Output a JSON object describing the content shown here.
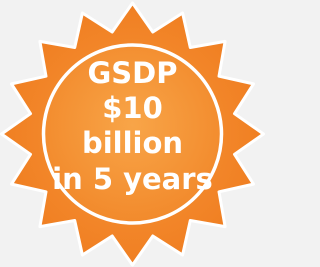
{
  "badge": {
    "lines": [
      "GSDP",
      "$10",
      "billion",
      "in 5 years"
    ]
  }
}
